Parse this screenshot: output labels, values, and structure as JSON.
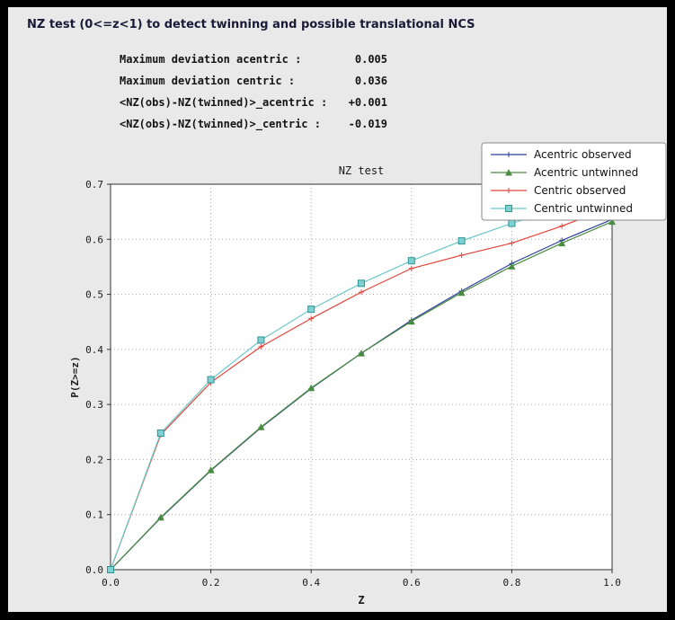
{
  "window": {
    "title": "NZ test (0<=z<1) to detect twinning and possible translational NCS"
  },
  "stats": {
    "rows": [
      {
        "label": "Maximum deviation acentric :",
        "value": "0.005"
      },
      {
        "label": "Maximum deviation centric :",
        "value": "0.036"
      },
      {
        "label": "<NZ(obs)-NZ(twinned)>_acentric :",
        "value": "+0.001"
      },
      {
        "label": "<NZ(obs)-NZ(twinned)>_centric :",
        "value": "-0.019"
      }
    ]
  },
  "chart_data": {
    "type": "line",
    "title": "NZ test",
    "xlabel": "Z",
    "ylabel": "P(Z>=z)",
    "xlim": [
      0.0,
      1.0
    ],
    "ylim": [
      0.0,
      0.7
    ],
    "x_ticks": [
      0.0,
      0.2,
      0.4,
      0.6,
      0.8,
      1.0
    ],
    "y_ticks": [
      0.0,
      0.1,
      0.2,
      0.3,
      0.4,
      0.5,
      0.6,
      0.7
    ],
    "grid": "dotted",
    "legend_position": "upper right",
    "x": [
      0.0,
      0.1,
      0.2,
      0.3,
      0.4,
      0.5,
      0.6,
      0.7,
      0.8,
      0.9,
      1.0
    ],
    "series": [
      {
        "name": "Acentric observed",
        "color": "#2c3e9c",
        "marker": "plus",
        "values": [
          0.0,
          0.094,
          0.18,
          0.258,
          0.329,
          0.393,
          0.453,
          0.506,
          0.556,
          0.598,
          0.636
        ]
      },
      {
        "name": "Acentric untwinned",
        "color": "#4a8c3f",
        "marker": "triangle",
        "values": [
          0.0,
          0.095,
          0.181,
          0.259,
          0.33,
          0.393,
          0.451,
          0.503,
          0.551,
          0.593,
          0.632
        ]
      },
      {
        "name": "Centric observed",
        "color": "#e2453c",
        "marker": "plus",
        "values": [
          0.0,
          0.245,
          0.34,
          0.405,
          0.456,
          0.504,
          0.547,
          0.571,
          0.593,
          0.624,
          0.659
        ]
      },
      {
        "name": "Centric untwinned",
        "color": "#6cc8c8",
        "marker": "square",
        "marker_fill": "#7fd0d0",
        "marker_edge": "#2f9494",
        "values": [
          0.0,
          0.248,
          0.345,
          0.417,
          0.473,
          0.52,
          0.561,
          0.597,
          0.629,
          0.657,
          0.683
        ]
      }
    ]
  },
  "colors": {
    "frame": "#000000",
    "panel_bg": "#e9e9e9",
    "plot_bg": "#ffffff",
    "grid": "#a8a8a8",
    "axis": "#333333",
    "text": "#1a1a1a",
    "legend_border": "#8a8a8a",
    "legend_bg": "#ffffff"
  }
}
